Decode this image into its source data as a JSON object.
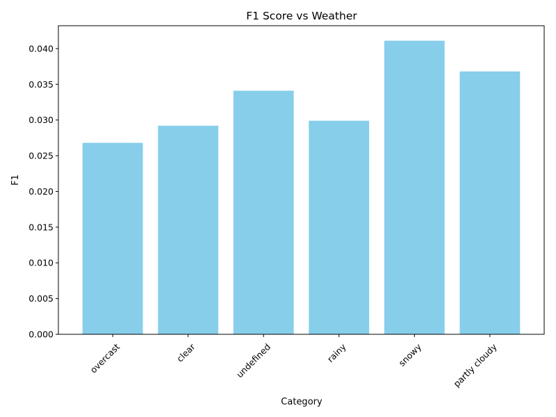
{
  "chart_data": {
    "type": "bar",
    "title": "F1 Score vs Weather",
    "xlabel": "Category",
    "ylabel": "F1",
    "categories": [
      "overcast",
      "clear",
      "undefined",
      "rainy",
      "snowy",
      "partly cloudy"
    ],
    "values": [
      0.0268,
      0.0292,
      0.0341,
      0.0299,
      0.0411,
      0.0368
    ],
    "ylim": [
      0,
      0.0432
    ],
    "yticks": [
      "0.000",
      "0.005",
      "0.010",
      "0.015",
      "0.020",
      "0.025",
      "0.030",
      "0.035",
      "0.040"
    ],
    "bar_color": "#87ceeb",
    "grid": false,
    "legend": "none"
  }
}
